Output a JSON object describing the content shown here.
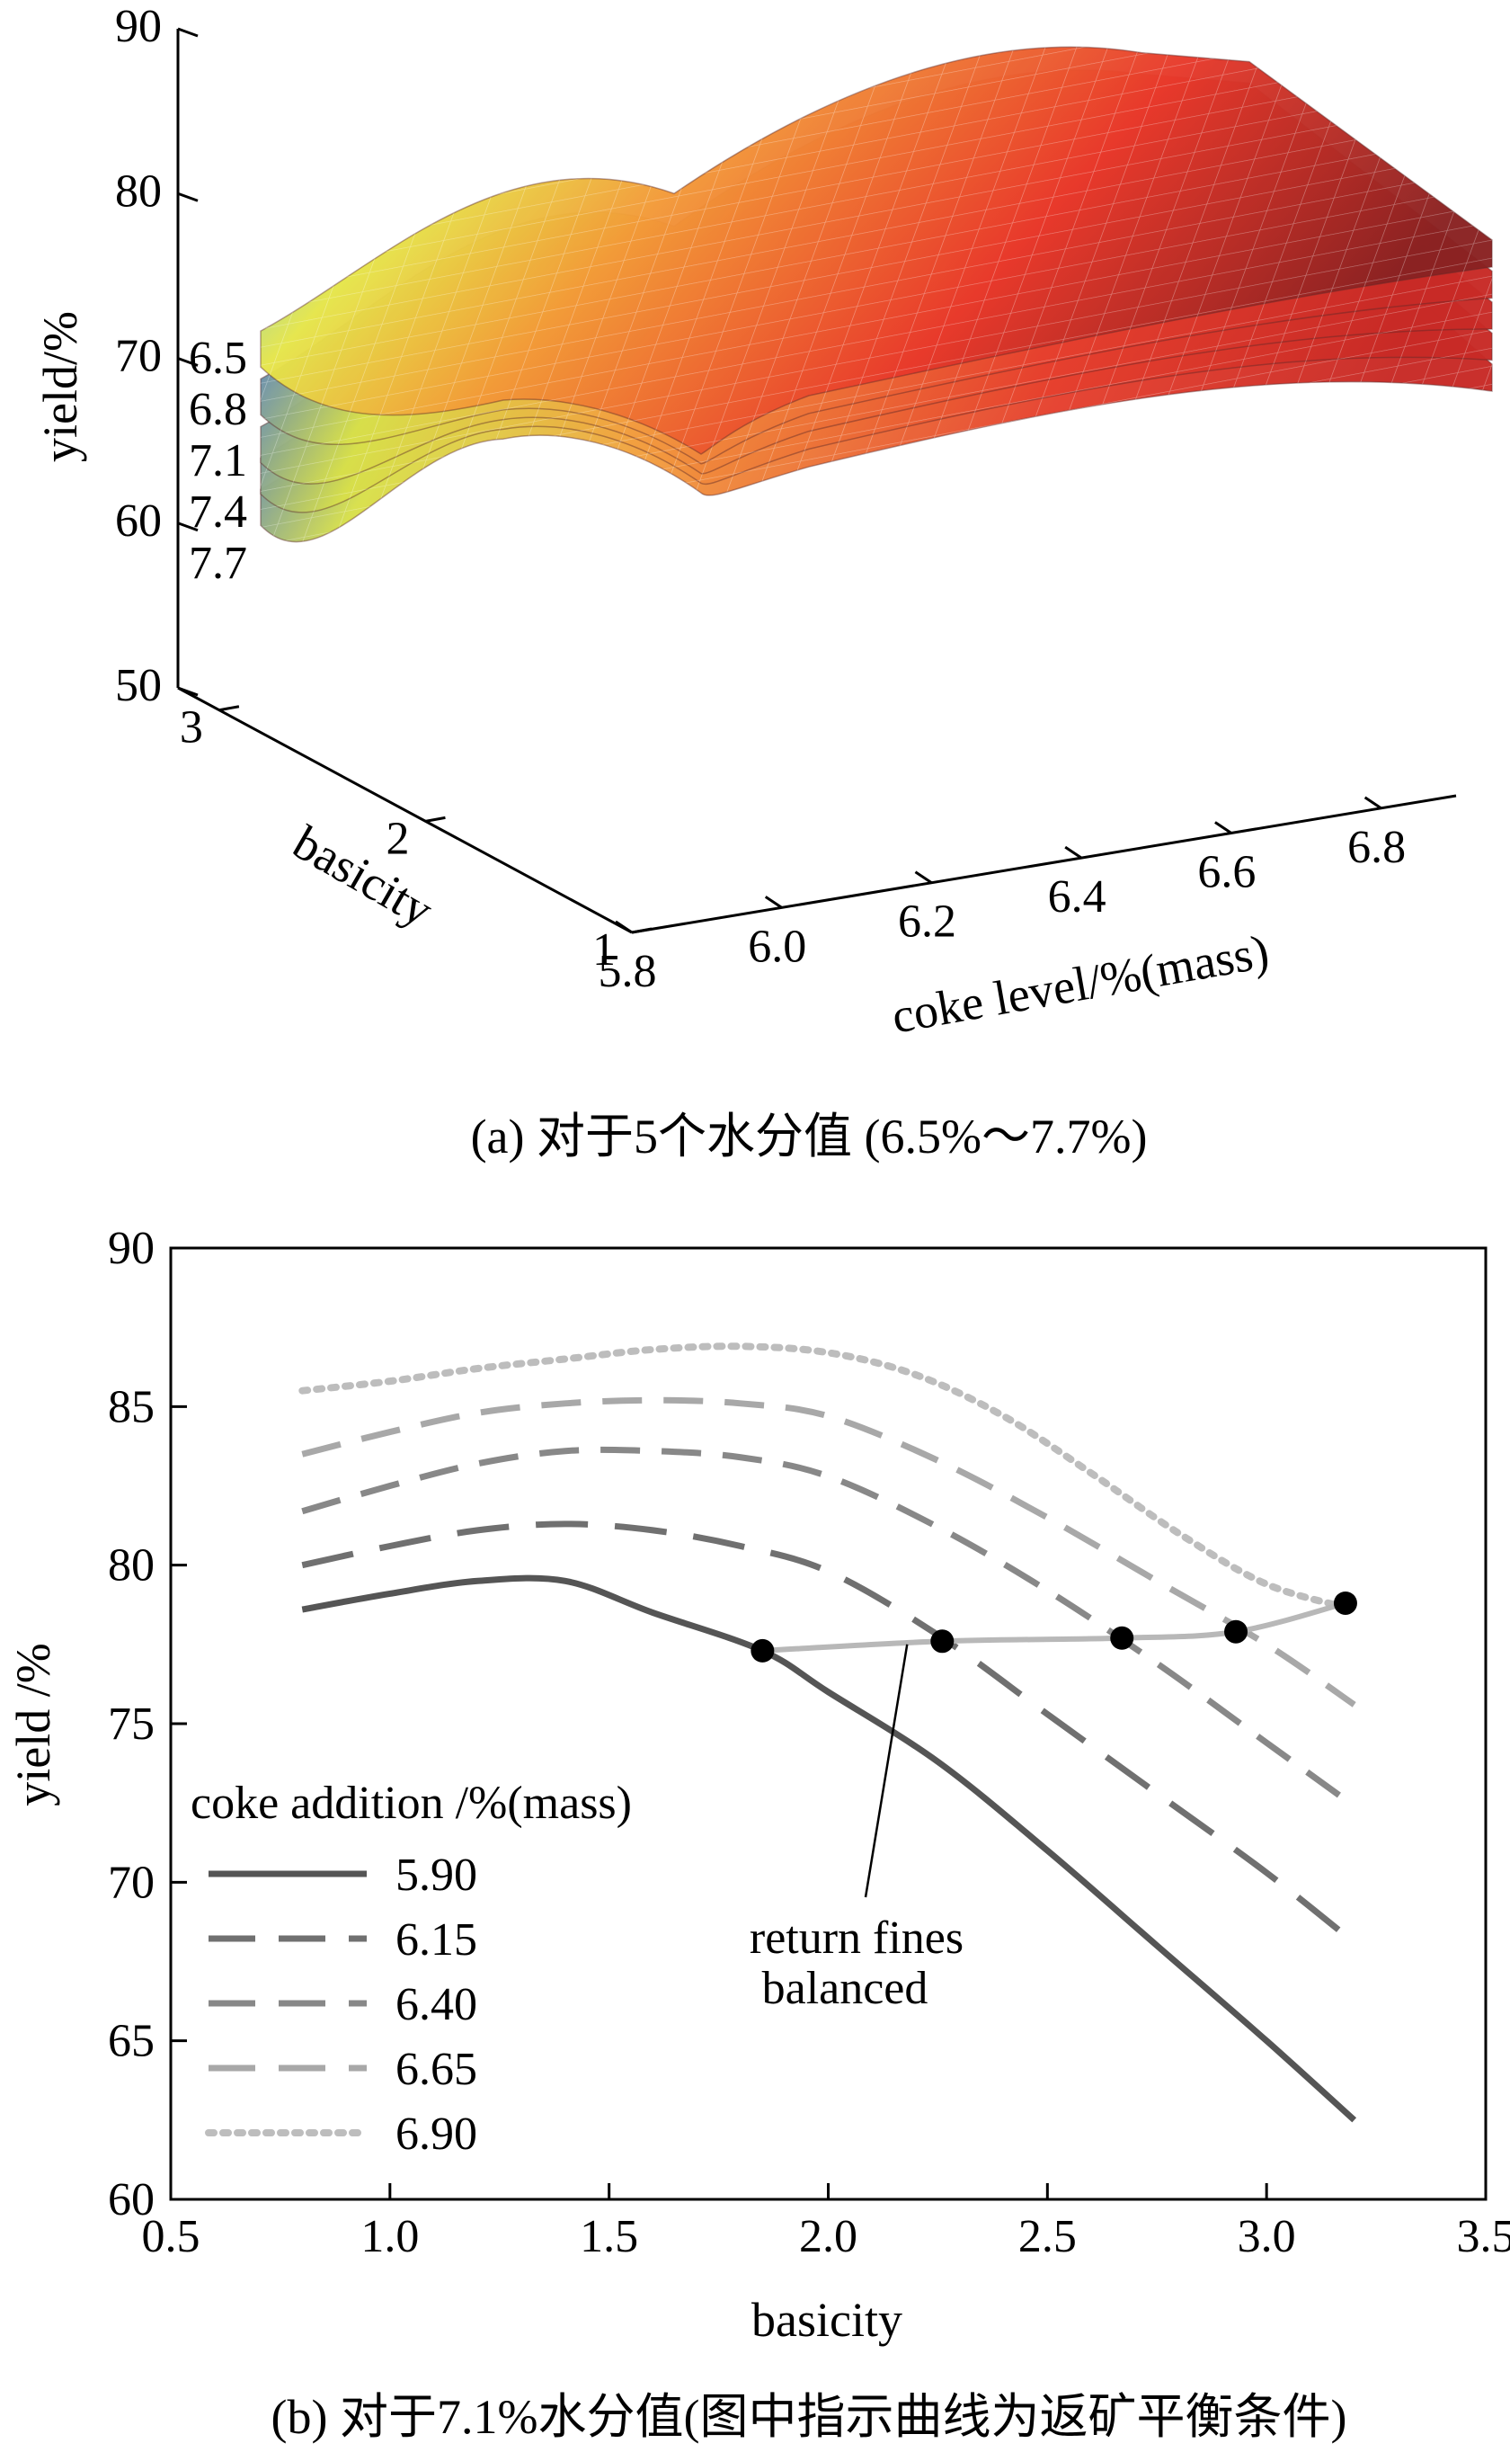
{
  "figure": {
    "caption_a": "(a) 对于5个水分值 (6.5%～7.7%)",
    "caption_b": "(b) 对于7.1%水分值(图中指示曲线为返矿平衡条件)"
  },
  "chart_data": [
    {
      "type": "surface3d",
      "zlabel": "yield/%",
      "xlabel": "coke level/%(mass)",
      "ylabel": "basicity",
      "z_ticks": [
        50,
        60,
        70,
        80,
        90
      ],
      "x_ticks": [
        5.8,
        6.0,
        6.2,
        6.4,
        6.6,
        6.8
      ],
      "y_ticks": [
        1,
        2,
        3
      ],
      "zlim": [
        50,
        90
      ],
      "xlim": [
        5.8,
        6.9
      ],
      "ylim": [
        1,
        3.2
      ],
      "moisture_labels": [
        "6.5",
        "6.8",
        "7.1",
        "7.4",
        "7.7"
      ],
      "surfaces": [
        {
          "moisture": 6.5,
          "left_edge_yield": 71,
          "peak_yield": 88,
          "right_edge_yield": 81
        },
        {
          "moisture": 6.8,
          "left_edge_yield": 68,
          "peak_yield": 87,
          "right_edge_yield": 80
        },
        {
          "moisture": 7.1,
          "left_edge_yield": 65,
          "peak_yield": 86,
          "right_edge_yield": 79
        },
        {
          "moisture": 7.4,
          "left_edge_yield": 63,
          "peak_yield": 85,
          "right_edge_yield": 78
        },
        {
          "moisture": 7.7,
          "left_edge_yield": 61,
          "peak_yield": 84,
          "right_edge_yield": 77
        }
      ],
      "colormap": [
        "#1a1a8c",
        "#4aa8d8",
        "#e8e84a",
        "#f59a3a",
        "#e83a2e",
        "#6a1a1a"
      ]
    },
    {
      "type": "line",
      "xlabel": "basicity",
      "ylabel": "yield /%",
      "xlim": [
        0.5,
        3.5
      ],
      "ylim": [
        60,
        90
      ],
      "x_ticks": [
        0.5,
        1.0,
        1.5,
        2.0,
        2.5,
        3.0,
        3.5
      ],
      "x_tick_labels": [
        "0.5",
        "1.0",
        "1.5",
        "2.0",
        "2.5",
        "3.0",
        "3.5"
      ],
      "y_ticks": [
        60,
        65,
        70,
        75,
        80,
        85,
        90
      ],
      "legend_title": "coke addition /%(mass)",
      "legend_position": "bottom-left",
      "series": [
        {
          "name": "5.90",
          "style": "solid",
          "color": "#555555",
          "x": [
            0.8,
            1.0,
            1.2,
            1.4,
            1.6,
            1.85,
            2.0,
            2.25,
            2.5,
            2.75,
            3.0,
            3.2
          ],
          "y": [
            78.6,
            79.1,
            79.5,
            79.5,
            78.5,
            77.3,
            76.0,
            73.8,
            71.0,
            68.0,
            65.0,
            62.5
          ]
        },
        {
          "name": "6.15",
          "style": "longdash",
          "color": "#707070",
          "x": [
            0.8,
            1.0,
            1.2,
            1.4,
            1.6,
            1.8,
            2.0,
            2.25,
            2.5,
            2.75,
            3.0,
            3.2
          ],
          "y": [
            80.0,
            80.6,
            81.1,
            81.3,
            81.1,
            80.6,
            79.8,
            77.8,
            75.3,
            72.8,
            70.3,
            68.1
          ]
        },
        {
          "name": "6.40",
          "style": "dash",
          "color": "#888888",
          "x": [
            0.8,
            1.0,
            1.2,
            1.4,
            1.6,
            1.8,
            2.0,
            2.25,
            2.5,
            2.75,
            3.0,
            3.2
          ],
          "y": [
            81.7,
            82.5,
            83.2,
            83.6,
            83.6,
            83.4,
            82.8,
            81.2,
            79.2,
            76.9,
            74.4,
            72.4
          ]
        },
        {
          "name": "6.65",
          "style": "dash",
          "color": "#a8a8a8",
          "x": [
            0.8,
            1.0,
            1.2,
            1.4,
            1.6,
            1.8,
            2.0,
            2.25,
            2.5,
            2.75,
            3.0,
            3.2
          ],
          "y": [
            83.5,
            84.2,
            84.8,
            85.1,
            85.2,
            85.1,
            84.7,
            83.3,
            81.5,
            79.5,
            77.5,
            75.6
          ]
        },
        {
          "name": "6.90",
          "style": "dot",
          "color": "#bdbdbd",
          "x": [
            0.8,
            1.0,
            1.2,
            1.4,
            1.6,
            1.8,
            2.0,
            2.2,
            2.4,
            2.6,
            2.8,
            3.0,
            3.2
          ],
          "y": [
            85.5,
            85.8,
            86.2,
            86.5,
            86.8,
            86.9,
            86.7,
            86.0,
            84.7,
            82.9,
            81.0,
            79.4,
            78.6
          ]
        }
      ],
      "balance_points": {
        "x": [
          1.85,
          2.26,
          2.67,
          2.93,
          3.18
        ],
        "y": [
          77.3,
          77.6,
          77.7,
          77.9,
          78.8
        ]
      },
      "annotation": {
        "line1": "return fines",
        "line2": "balanced",
        "points_to": [
          2.18,
          77.5
        ]
      }
    }
  ]
}
